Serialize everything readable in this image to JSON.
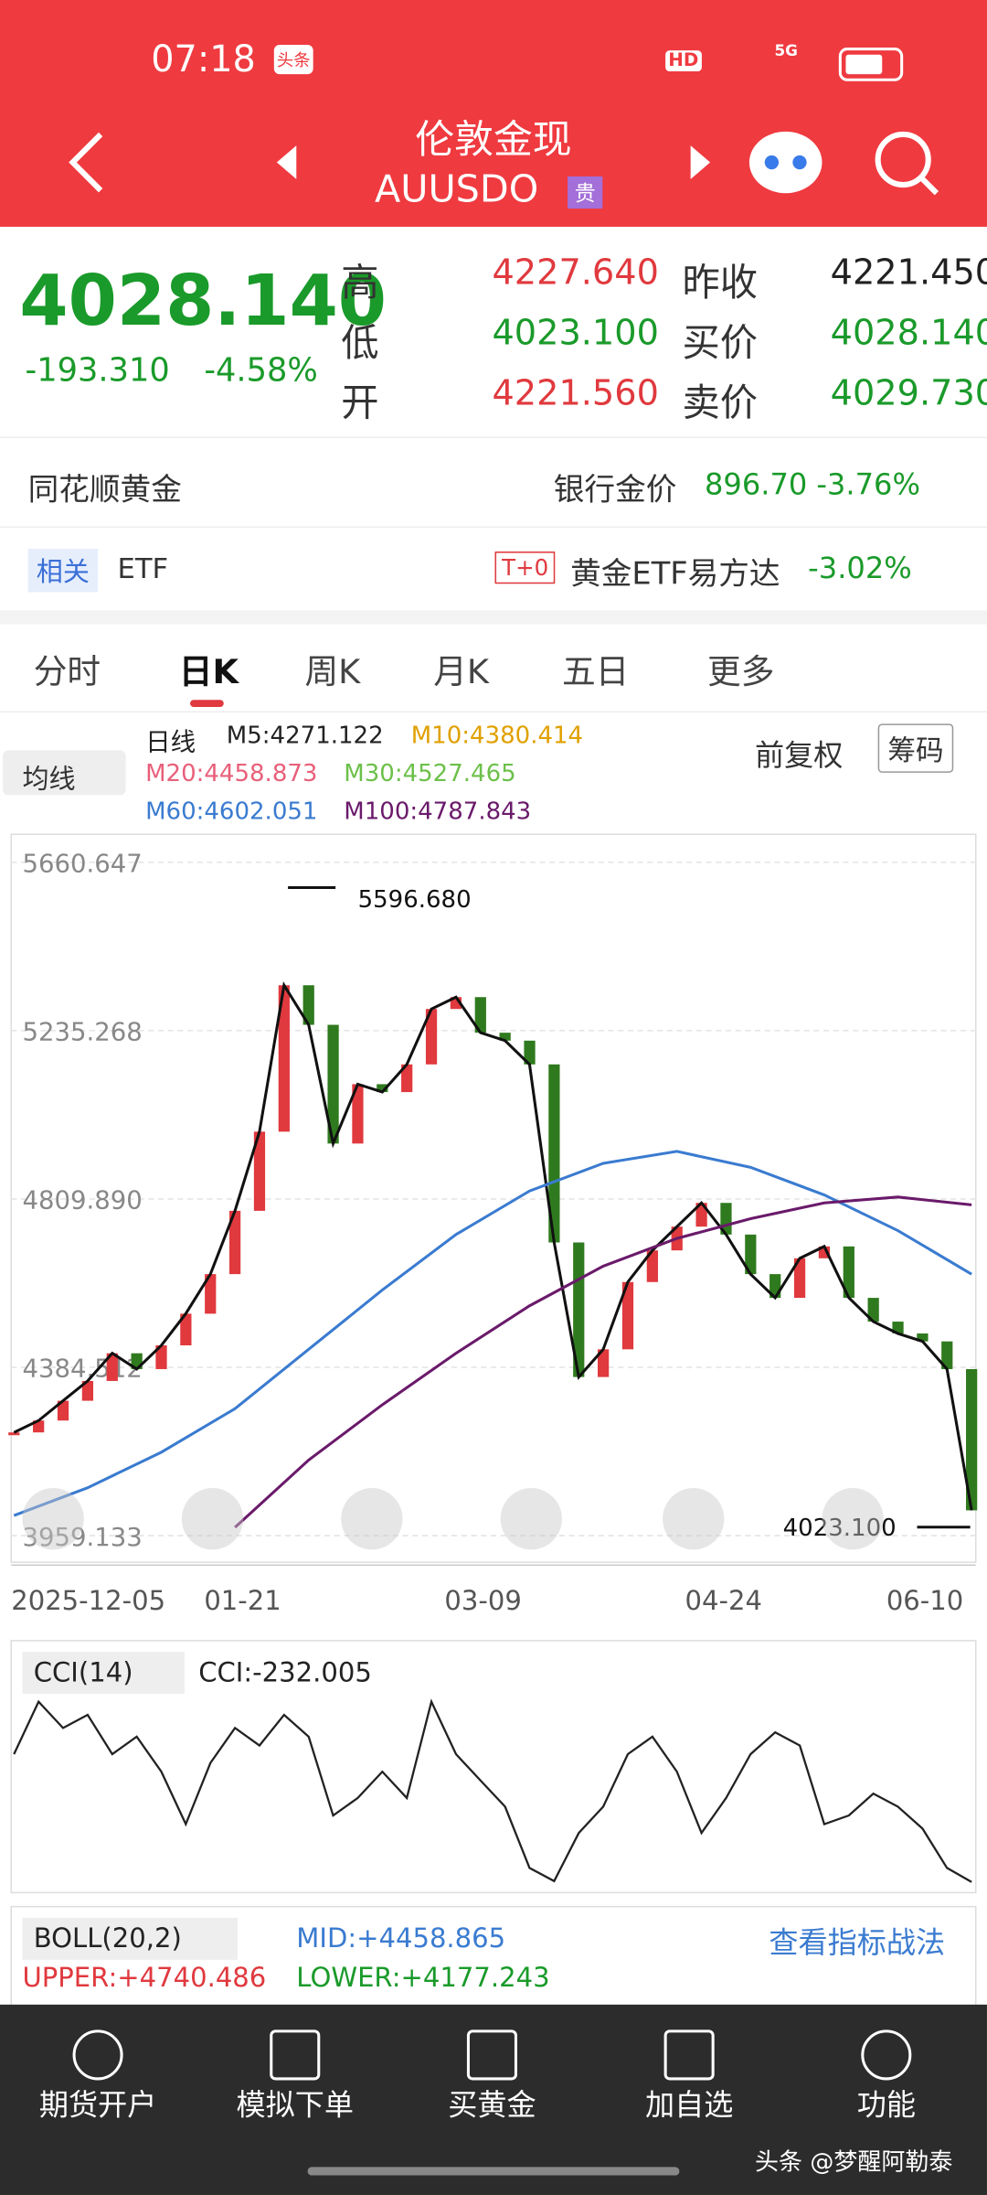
{
  "status": {
    "time": "07:18",
    "badge": "头条",
    "hd": "HD",
    "net": "5G"
  },
  "header": {
    "title": "伦敦金现",
    "code": "AUUSDO",
    "tag": "贵"
  },
  "quote": {
    "price": "4028.140",
    "change": "-193.310",
    "pct": "-4.58%",
    "rows": [
      [
        "高",
        "4227.640",
        "昨收",
        "4221.450"
      ],
      [
        "低",
        "4023.100",
        "买价",
        "4028.140"
      ],
      [
        "开",
        "4221.560",
        "卖价",
        "4029.730"
      ]
    ]
  },
  "gold": {
    "name": "同花顺黄金",
    "label": "银行金价",
    "price": "896.70",
    "pct": "-3.76%"
  },
  "etf": {
    "tag": "相关",
    "name": "ETF",
    "t0": "T+0",
    "fund": "黄金ETF易方达",
    "pct": "-3.02%"
  },
  "tabs": [
    "分时",
    "日K",
    "周K",
    "月K",
    "五日",
    "更多"
  ],
  "legend": {
    "kind": "均线",
    "line": "日线",
    "items": [
      "M5:4271.122",
      "M10:4380.414",
      "M20:4458.873",
      "M30:4527.465",
      "M60:4602.051",
      "M100:4787.843"
    ],
    "fq": "前复权",
    "chips": "筹码"
  },
  "kline": {
    "ylim": [
      3959.133,
      5660.647
    ],
    "yticks": [
      5660.647,
      5235.268,
      {
        "value": 4809.89,
        "label": "4809.890"
      },
      4384.512,
      3959.133
    ],
    "high": {
      "value": 5596.68,
      "label": "5596.680"
    },
    "low": {
      "value": 4023.1,
      "label": "4023.100"
    },
    "dates": [
      "2025-12-05",
      "01-21",
      "03-09",
      "04-24",
      "06-10"
    ],
    "closes": [
      4220,
      4250,
      4300,
      4350,
      4420,
      4380,
      4440,
      4520,
      4620,
      4780,
      4980,
      5350,
      5250,
      4950,
      5100,
      5080,
      5150,
      5290,
      5320,
      5230,
      5210,
      5150,
      4700,
      4360,
      4430,
      4600,
      4680,
      4740,
      4800,
      4720,
      4620,
      4560,
      4660,
      4690,
      4560,
      4500,
      4470,
      4450,
      4380,
      4023.1
    ],
    "ma60": [
      4010,
      4080,
      4170,
      4280,
      4430,
      4580,
      4720,
      4830,
      4900,
      4930,
      4890,
      4820,
      4730,
      4620
    ],
    "ma100": [
      null,
      null,
      null,
      3980,
      4150,
      4290,
      4420,
      4540,
      4640,
      4710,
      4760,
      4800,
      4815,
      4795
    ]
  },
  "cci": {
    "label": "CCI(14)",
    "value": "CCI:-232.005",
    "ylim": [
      -250,
      230
    ],
    "values": [
      60,
      180,
      120,
      150,
      60,
      100,
      20,
      -100,
      40,
      120,
      80,
      150,
      100,
      -80,
      -40,
      20,
      -40,
      180,
      60,
      0,
      -60,
      -200,
      -230,
      -120,
      -60,
      60,
      100,
      20,
      -120,
      -40,
      60,
      110,
      80,
      -100,
      -80,
      -30,
      -60,
      -110,
      -200,
      -232.005
    ]
  },
  "boll": {
    "label": "BOLL(20,2)",
    "mid": "MID:+4458.865",
    "link": "查看指标战法",
    "upper": "UPPER:+4740.486",
    "lower": "LOWER:+4177.243"
  },
  "nav": [
    "期货开户",
    "模拟下单",
    "买黄金",
    "加自选",
    "功能"
  ],
  "watermark": "头条 @梦醒阿勒泰"
}
